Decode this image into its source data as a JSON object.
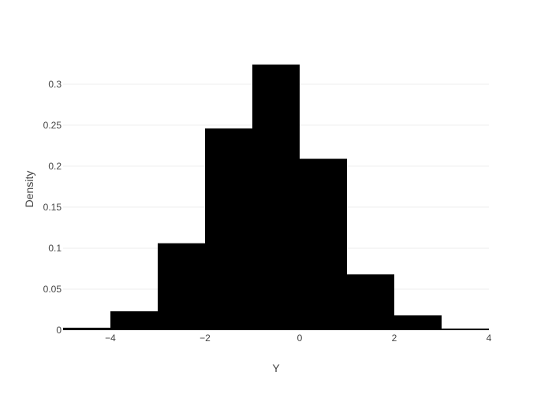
{
  "chart_data": {
    "type": "bar",
    "subtype": "histogram",
    "title": "",
    "xlabel": "Y",
    "ylabel": "Density",
    "xlim": [
      -5,
      4
    ],
    "ylim": [
      0,
      0.345
    ],
    "xticks": [
      -4,
      -2,
      0,
      2,
      4
    ],
    "xtick_labels": [
      "−4",
      "−2",
      "0",
      "2",
      "4"
    ],
    "yticks": [
      0,
      0.05,
      0.1,
      0.15,
      0.2,
      0.25,
      0.3
    ],
    "ytick_labels": [
      "0",
      "0.05",
      "0.1",
      "0.15",
      "0.2",
      "0.25",
      "0.3"
    ],
    "grid": true,
    "bar_color": "#000000",
    "bins": [
      {
        "x0": -5,
        "x1": -4,
        "value": 0.003
      },
      {
        "x0": -4,
        "x1": -3,
        "value": 0.023
      },
      {
        "x0": -3,
        "x1": -2,
        "value": 0.106
      },
      {
        "x0": -2,
        "x1": -1,
        "value": 0.246
      },
      {
        "x0": -1,
        "x1": 0,
        "value": 0.324
      },
      {
        "x0": 0,
        "x1": 1,
        "value": 0.209
      },
      {
        "x0": 1,
        "x1": 2,
        "value": 0.068
      },
      {
        "x0": 2,
        "x1": 3,
        "value": 0.018
      },
      {
        "x0": 3,
        "x1": 4,
        "value": 0.002
      }
    ]
  }
}
